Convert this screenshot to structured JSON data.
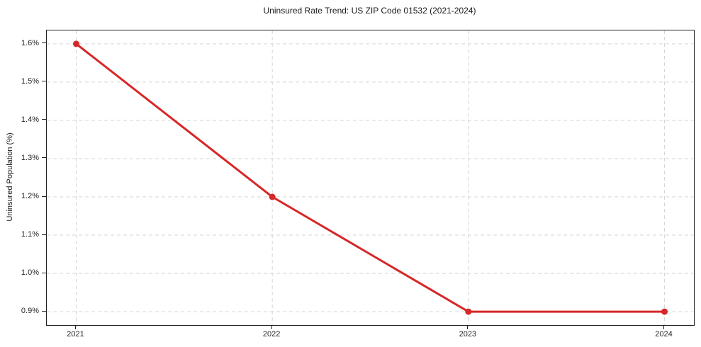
{
  "chart_data": {
    "type": "line",
    "title": "Uninsured Rate Trend: US ZIP Code 01532 (2021-2024)",
    "xlabel": "",
    "ylabel": "Uninsured Population (%)",
    "x": [
      2021,
      2022,
      2023,
      2024
    ],
    "values": [
      1.6,
      1.2,
      0.9,
      0.9
    ],
    "x_ticks": [
      2021,
      2022,
      2023,
      2024
    ],
    "x_tick_labels": [
      "2021",
      "2022",
      "2023",
      "2024"
    ],
    "y_ticks": [
      0.9,
      1.0,
      1.1,
      1.2,
      1.3,
      1.4,
      1.5,
      1.6
    ],
    "y_tick_labels": [
      "0.9%",
      "1.0%",
      "1.1%",
      "1.2%",
      "1.3%",
      "1.4%",
      "1.5%",
      "1.6%"
    ],
    "xlim": [
      2020.85,
      2024.15
    ],
    "ylim": [
      0.865,
      1.635
    ],
    "grid": true,
    "grid_style": "dashed",
    "grid_color": "#d5d5d5",
    "line_color": "#d62728",
    "marker": "circle",
    "axis_border_color": "#1f1f1f",
    "background_color": "#ffffff",
    "legend": "none"
  }
}
